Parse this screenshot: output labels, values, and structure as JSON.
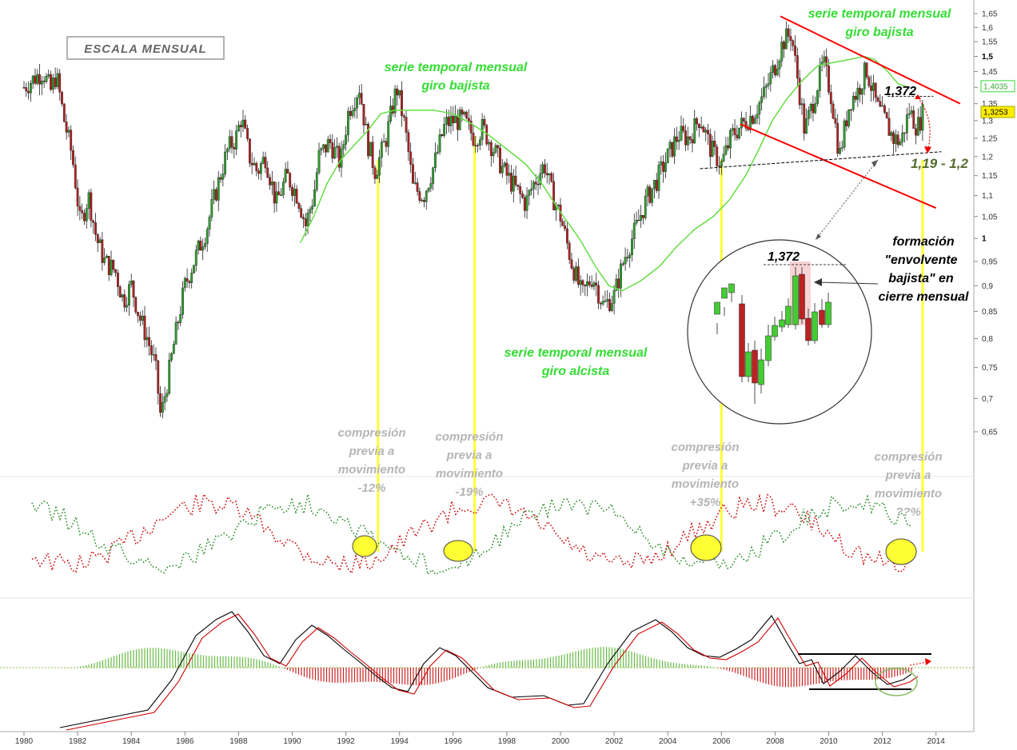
{
  "title_box": "ESCALA MENSUAL",
  "chart_data": {
    "type": "candlestick",
    "x_ticks": [
      "1980",
      "1982",
      "1984",
      "1986",
      "1988",
      "1990",
      "1992",
      "1994",
      "1996",
      "1998",
      "2000",
      "2002",
      "2004",
      "2006",
      "2008",
      "2010",
      "2012",
      "2014"
    ],
    "x_range": [
      1980,
      2014.9
    ],
    "y_ticks": [
      "1,65",
      "1,6",
      "1,55",
      "1,5",
      "1,45",
      "1,4",
      "1,35",
      "1,3",
      "1,25",
      "1,2",
      "1,15",
      "1,1",
      "1,05",
      "1",
      "0,95",
      "0,9",
      "0,85",
      "0,8",
      "0,75",
      "0,7",
      "0,65"
    ],
    "y_bold_ticks": [
      "1,5",
      "1"
    ],
    "y_range": [
      0.62,
      1.66
    ],
    "price_labels": [
      {
        "text": "1,4035",
        "value": 1.4035,
        "color": "#ffffff",
        "border": "#33dd33",
        "text_color": "#33aa33"
      },
      {
        "text": "1,3253",
        "value": 1.3253,
        "color": "#ffee00",
        "border": "#aaaa00",
        "text_color": "#000000"
      }
    ],
    "series": [
      {
        "kind": "price",
        "points": [
          [
            1980.0,
            1.4
          ],
          [
            1980.4,
            1.43
          ],
          [
            1980.7,
            1.45
          ],
          [
            1981.0,
            1.39
          ],
          [
            1981.2,
            1.44
          ],
          [
            1981.5,
            1.3
          ],
          [
            1981.8,
            1.2
          ],
          [
            1982.1,
            1.03
          ],
          [
            1982.4,
            1.1
          ],
          [
            1982.7,
            1.0
          ],
          [
            1983.0,
            0.95
          ],
          [
            1983.4,
            0.93
          ],
          [
            1983.7,
            0.87
          ],
          [
            1984.0,
            0.9
          ],
          [
            1984.3,
            0.84
          ],
          [
            1984.6,
            0.8
          ],
          [
            1984.9,
            0.75
          ],
          [
            1985.1,
            0.67
          ],
          [
            1985.4,
            0.74
          ],
          [
            1985.7,
            0.82
          ],
          [
            1986.0,
            0.9
          ],
          [
            1986.4,
            0.96
          ],
          [
            1986.8,
            1.02
          ],
          [
            1987.2,
            1.12
          ],
          [
            1987.6,
            1.22
          ],
          [
            1987.9,
            1.25
          ],
          [
            1988.1,
            1.31
          ],
          [
            1988.4,
            1.2
          ],
          [
            1988.7,
            1.16
          ],
          [
            1989.0,
            1.2
          ],
          [
            1989.4,
            1.08
          ],
          [
            1989.8,
            1.15
          ],
          [
            1990.2,
            1.1
          ],
          [
            1990.5,
            1.03
          ],
          [
            1990.8,
            1.1
          ],
          [
            1991.0,
            1.2
          ],
          [
            1991.4,
            1.24
          ],
          [
            1991.8,
            1.18
          ],
          [
            1992.1,
            1.33
          ],
          [
            1992.5,
            1.4
          ],
          [
            1992.8,
            1.24
          ],
          [
            1993.1,
            1.16
          ],
          [
            1993.5,
            1.25
          ],
          [
            1993.9,
            1.4
          ],
          [
            1994.2,
            1.28
          ],
          [
            1994.5,
            1.12
          ],
          [
            1994.9,
            1.1
          ],
          [
            1995.3,
            1.18
          ],
          [
            1995.7,
            1.29
          ],
          [
            1996.0,
            1.3
          ],
          [
            1996.4,
            1.3
          ],
          [
            1996.8,
            1.25
          ],
          [
            1997.1,
            1.28
          ],
          [
            1997.5,
            1.22
          ],
          [
            1997.9,
            1.16
          ],
          [
            1998.3,
            1.12
          ],
          [
            1998.7,
            1.08
          ],
          [
            1999.0,
            1.13
          ],
          [
            1999.4,
            1.18
          ],
          [
            1999.7,
            1.1
          ],
          [
            2000.0,
            1.05
          ],
          [
            2000.4,
            0.95
          ],
          [
            2000.8,
            0.88
          ],
          [
            2001.2,
            0.92
          ],
          [
            2001.6,
            0.86
          ],
          [
            2002.0,
            0.88
          ],
          [
            2002.4,
            0.96
          ],
          [
            2002.8,
            1.02
          ],
          [
            2003.2,
            1.09
          ],
          [
            2003.6,
            1.14
          ],
          [
            2004.0,
            1.2
          ],
          [
            2004.4,
            1.26
          ],
          [
            2004.8,
            1.25
          ],
          [
            2005.2,
            1.31
          ],
          [
            2005.6,
            1.22
          ],
          [
            2006.0,
            1.18
          ],
          [
            2006.4,
            1.26
          ],
          [
            2006.8,
            1.29
          ],
          [
            2007.2,
            1.32
          ],
          [
            2007.6,
            1.38
          ],
          [
            2008.0,
            1.47
          ],
          [
            2008.3,
            1.55
          ],
          [
            2008.6,
            1.58
          ],
          [
            2008.8,
            1.45
          ],
          [
            2009.1,
            1.27
          ],
          [
            2009.4,
            1.35
          ],
          [
            2009.8,
            1.48
          ],
          [
            2010.1,
            1.37
          ],
          [
            2010.4,
            1.2
          ],
          [
            2010.8,
            1.36
          ],
          [
            2011.1,
            1.39
          ],
          [
            2011.4,
            1.46
          ],
          [
            2011.8,
            1.34
          ],
          [
            2012.1,
            1.3
          ],
          [
            2012.4,
            1.25
          ],
          [
            2012.7,
            1.24
          ],
          [
            2013.0,
            1.33
          ],
          [
            2013.3,
            1.28
          ],
          [
            2013.5,
            1.32
          ]
        ]
      },
      {
        "kind": "moving_average",
        "color": "#66dd44",
        "points": [
          [
            1990.3,
            0.99
          ],
          [
            1990.8,
            1.05
          ],
          [
            1991.3,
            1.13
          ],
          [
            1991.8,
            1.19
          ],
          [
            1992.3,
            1.23
          ],
          [
            1992.8,
            1.27
          ],
          [
            1993.3,
            1.32
          ],
          [
            1993.8,
            1.33
          ],
          [
            1994.5,
            1.33
          ],
          [
            1995.3,
            1.33
          ],
          [
            1996.0,
            1.32
          ],
          [
            1996.7,
            1.29
          ],
          [
            1997.3,
            1.26
          ],
          [
            1998.0,
            1.22
          ],
          [
            1998.7,
            1.18
          ],
          [
            1999.3,
            1.13
          ],
          [
            2000.0,
            1.06
          ],
          [
            2000.7,
            1.0
          ],
          [
            2001.3,
            0.94
          ],
          [
            2001.8,
            0.9
          ],
          [
            2002.3,
            0.89
          ],
          [
            2003.0,
            0.91
          ],
          [
            2003.7,
            0.94
          ],
          [
            2004.3,
            0.98
          ],
          [
            2005.0,
            1.02
          ],
          [
            2005.7,
            1.05
          ],
          [
            2006.3,
            1.09
          ],
          [
            2006.9,
            1.15
          ],
          [
            2007.4,
            1.22
          ],
          [
            2007.9,
            1.3
          ],
          [
            2008.4,
            1.36
          ],
          [
            2009.0,
            1.42
          ],
          [
            2009.6,
            1.47
          ],
          [
            2010.2,
            1.48
          ],
          [
            2010.8,
            1.49
          ],
          [
            2011.3,
            1.5
          ],
          [
            2011.7,
            1.49
          ],
          [
            2012.2,
            1.45
          ],
          [
            2012.6,
            1.41
          ],
          [
            2013.0,
            1.4
          ]
        ]
      }
    ],
    "trendlines": [
      {
        "kind": "resistance",
        "color": "#ff0000",
        "from": [
          2008.2,
          1.64
        ],
        "to": [
          2014.9,
          1.35
        ]
      },
      {
        "kind": "support_channel",
        "color": "#ff0000",
        "from": [
          2006.7,
          1.29
        ],
        "to": [
          2014.0,
          1.07
        ]
      },
      {
        "kind": "neckline",
        "color": "#000000",
        "from": [
          2005.2,
          1.168
        ],
        "to": [
          2014.2,
          1.213
        ]
      }
    ],
    "zones": [
      {
        "kind": "support_band",
        "color": "#d8ecd0",
        "y_from": 1.17,
        "y_to": 1.185,
        "x_from": 2004.2,
        "x_to": 2014.8
      }
    ],
    "vertical_markers": [
      1993.2,
      1996.8,
      2006.0,
      2013.5
    ],
    "subpanel_indicator_1": {
      "type": "dotted_lines",
      "series_colors": [
        "#cc0000",
        "#228822"
      ]
    },
    "subpanel_indicator_2": {
      "type": "macd",
      "line_colors": [
        "#000000",
        "#cc0000"
      ],
      "histogram_colors": [
        "#66bb44",
        "#cc2222"
      ]
    }
  },
  "annotations": {
    "top_right_line1": "serie temporal mensual",
    "top_right_line2": "giro bajista",
    "mid_line1": "serie temporal mensual",
    "mid_line2": "giro bajista",
    "low_line1": "serie temporal mensual",
    "low_line2": "giro alcista",
    "level_1372": "1,372",
    "zoom_level_1372": "1,372",
    "support_label": "1,19 - 1,2",
    "formation_line1": "formación",
    "formation_line2": "\"envolvente",
    "formation_line3": "bajista\" en",
    "formation_line4": "cierre mensual",
    "comp1": [
      "compresión",
      "previa a",
      "movimiento",
      "-12%"
    ],
    "comp2": [
      "compresión",
      "previa a",
      "movimiento",
      "-19%"
    ],
    "comp3": [
      "compresión",
      "previa a",
      "movimiento",
      "+35%"
    ],
    "comp4": [
      "compresión",
      "previa a",
      "movimiento",
      "??%"
    ]
  }
}
